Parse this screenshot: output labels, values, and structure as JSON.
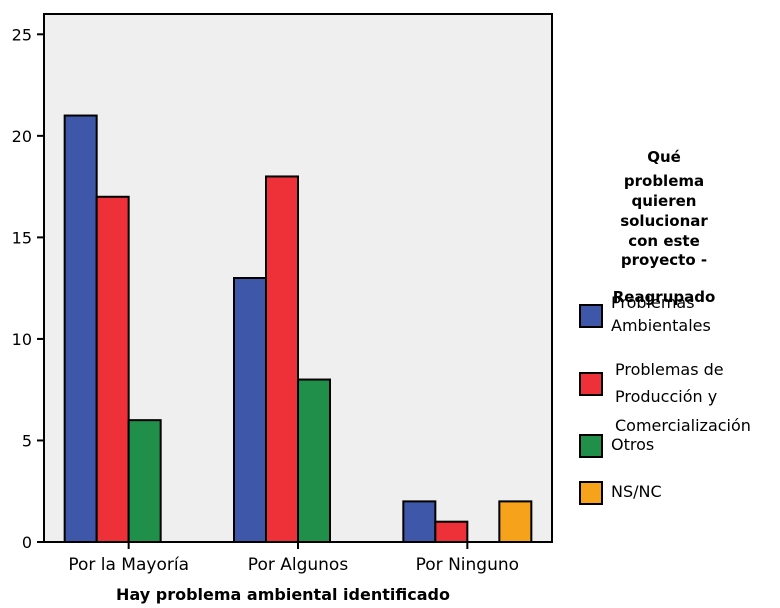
{
  "chart_data": {
    "type": "bar",
    "categories": [
      "Por la Mayoría",
      "Por Algunos",
      "Por Ninguno"
    ],
    "series": [
      {
        "name": "Problemas Ambientales",
        "values": [
          21,
          13,
          2
        ],
        "color": "#3f57a8"
      },
      {
        "name": "Problemas de Producción y Comercialización",
        "values": [
          17,
          18,
          1
        ],
        "color": "#ee3138"
      },
      {
        "name": "Otros",
        "values": [
          6,
          8,
          0
        ],
        "color": "#1f8f4a"
      },
      {
        "name": "NS/NC",
        "values": [
          0,
          0,
          2
        ],
        "color": "#f7a21b"
      }
    ],
    "xlabel": "Hay problema ambiental identificado",
    "ylabel": "",
    "ylim": [
      0,
      26
    ],
    "yticks": [
      0,
      5,
      10,
      15,
      20,
      25
    ],
    "legend_title_lines": [
      "Qué",
      "problema",
      "quieren",
      "solucionar",
      "con este",
      "proyecto -",
      "Reagrupado"
    ],
    "legend_label_lines": [
      [
        "Problemas",
        "Ambientales"
      ],
      [
        "Problemas de",
        "Producción y",
        "Comercialización"
      ],
      [
        "Otros"
      ],
      [
        "NS/NC"
      ]
    ],
    "plot_background": "#efefef",
    "grid": false,
    "legend_position": "right"
  }
}
